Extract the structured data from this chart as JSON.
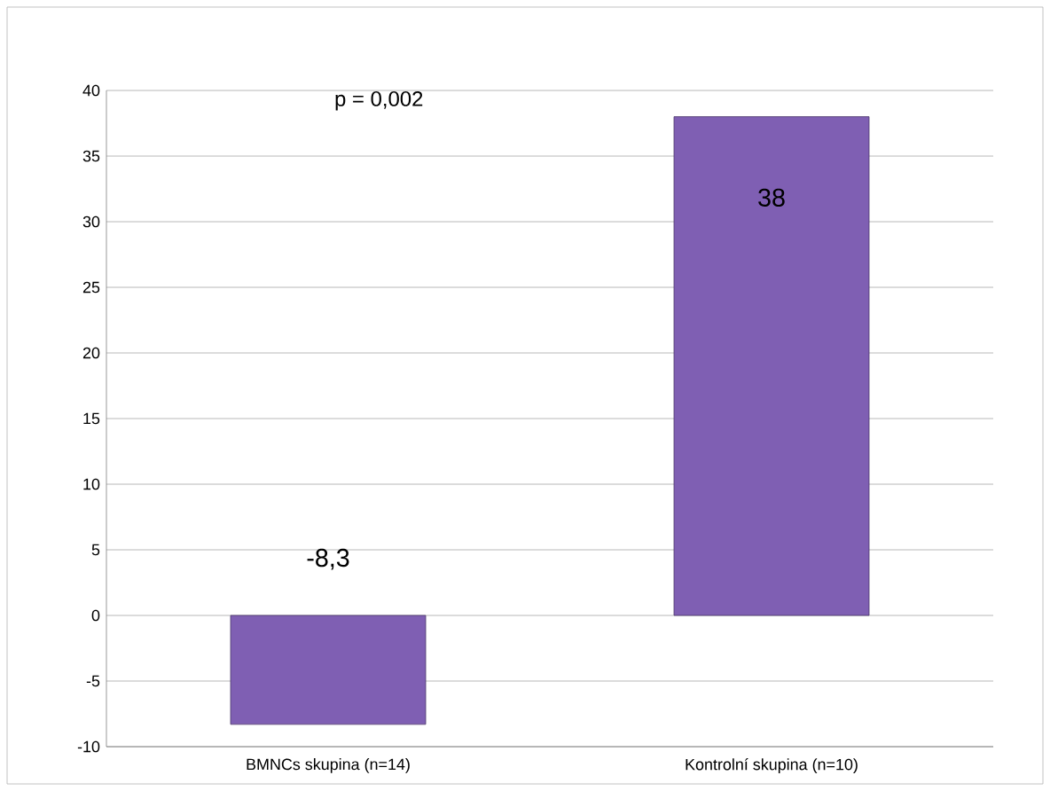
{
  "chart_data": {
    "type": "bar",
    "categories": [
      "BMNCs skupina (n=14)",
      "Kontrolní skupina  (n=10)"
    ],
    "values": [
      -8.3,
      38
    ],
    "value_labels": [
      "-8,3",
      "38"
    ],
    "color": "#7f5fb3",
    "ylim": [
      -10,
      40
    ],
    "yticks": [
      -10,
      -5,
      0,
      5,
      10,
      15,
      20,
      25,
      30,
      35,
      40
    ],
    "grid": "y",
    "annotations": [
      "p = 0,002"
    ]
  }
}
